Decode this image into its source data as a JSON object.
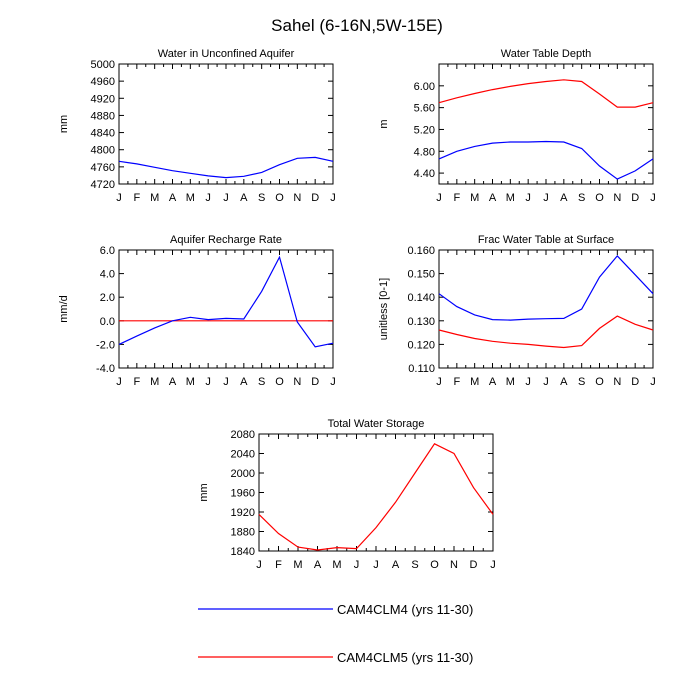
{
  "title": "Sahel (6-16N,5W-15E)",
  "colors": {
    "CAM4CLM4": "#0000ff",
    "CAM4CLM5": "#ff0000",
    "zero_line": "#ff0000"
  },
  "legend": {
    "placement": "bottom-center",
    "entries": [
      {
        "name": "CAM4CLM4 (yrs 11-30)",
        "color": "#0000ff"
      },
      {
        "name": "CAM4CLM5 (yrs 11-30)",
        "color": "#ff0000"
      }
    ]
  },
  "chart_data": [
    {
      "type": "line",
      "title": "Water in Unconfined Aquifer",
      "ylabel": "mm",
      "categories": [
        "J",
        "F",
        "M",
        "A",
        "M",
        "J",
        "J",
        "A",
        "S",
        "O",
        "N",
        "D",
        "J"
      ],
      "ylim": [
        4720,
        5000
      ],
      "yticks": [
        4720,
        4760,
        4800,
        4840,
        4880,
        4920,
        4960,
        5000
      ],
      "ytick_labels": [
        "4720",
        "4760",
        "4800",
        "4840",
        "4880",
        "4920",
        "4960",
        "5000"
      ],
      "grid": false,
      "series": [
        {
          "name": "CAM4CLM4 (yrs 11-30)",
          "color": "#0000ff",
          "values": [
            4773,
            4767,
            4759,
            4751,
            4745,
            4739,
            4735,
            4738,
            4747,
            4765,
            4780,
            4782,
            4773
          ]
        }
      ]
    },
    {
      "type": "line",
      "title": "Water Table Depth",
      "ylabel": "m",
      "categories": [
        "J",
        "F",
        "M",
        "A",
        "M",
        "J",
        "J",
        "A",
        "S",
        "O",
        "N",
        "D",
        "J"
      ],
      "ylim": [
        4.2,
        6.4
      ],
      "yticks": [
        4.4,
        4.8,
        5.2,
        5.6,
        6.0
      ],
      "ytick_labels": [
        "4.40",
        "4.80",
        "5.20",
        "5.60",
        "6.00"
      ],
      "grid": false,
      "series": [
        {
          "name": "CAM4CLM4 (yrs 11-30)",
          "color": "#0000ff",
          "values": [
            4.66,
            4.8,
            4.89,
            4.95,
            4.97,
            4.97,
            4.98,
            4.97,
            4.85,
            4.53,
            4.29,
            4.44,
            4.66
          ]
        },
        {
          "name": "CAM4CLM5 (yrs 11-30)",
          "color": "#ff0000",
          "values": [
            5.69,
            5.78,
            5.86,
            5.93,
            5.99,
            6.04,
            6.08,
            6.11,
            6.08,
            5.85,
            5.61,
            5.61,
            5.69
          ]
        }
      ]
    },
    {
      "type": "line",
      "title": "Aquifer Recharge Rate",
      "ylabel": "mm/d",
      "categories": [
        "J",
        "F",
        "M",
        "A",
        "M",
        "J",
        "J",
        "A",
        "S",
        "O",
        "N",
        "D",
        "J"
      ],
      "ylim": [
        -4.0,
        6.0
      ],
      "yticks": [
        -4.0,
        -2.0,
        0.0,
        2.0,
        4.0,
        6.0
      ],
      "ytick_labels": [
        "-4.0",
        "-2.0",
        "0.0",
        "2.0",
        "4.0",
        "6.0"
      ],
      "grid": false,
      "zero_line": true,
      "series": [
        {
          "name": "CAM4CLM4 (yrs 11-30)",
          "color": "#0000ff",
          "values": [
            -2.0,
            -1.3,
            -0.6,
            0.0,
            0.3,
            0.1,
            0.2,
            0.15,
            2.5,
            5.4,
            -0.1,
            -2.2,
            -1.9
          ]
        }
      ]
    },
    {
      "type": "line",
      "title": "Frac Water Table at Surface",
      "ylabel": "unitless [0-1]",
      "categories": [
        "J",
        "F",
        "M",
        "A",
        "M",
        "J",
        "J",
        "A",
        "S",
        "O",
        "N",
        "D",
        "J"
      ],
      "ylim": [
        0.11,
        0.16
      ],
      "yticks": [
        0.11,
        0.12,
        0.13,
        0.14,
        0.15,
        0.16
      ],
      "ytick_labels": [
        "0.110",
        "0.120",
        "0.130",
        "0.140",
        "0.150",
        "0.160"
      ],
      "grid": false,
      "series": [
        {
          "name": "CAM4CLM4 (yrs 11-30)",
          "color": "#0000ff",
          "values": [
            0.1415,
            0.136,
            0.1325,
            0.1305,
            0.1303,
            0.1307,
            0.1309,
            0.131,
            0.135,
            0.1485,
            0.1575,
            0.1495,
            0.1415
          ]
        },
        {
          "name": "CAM4CLM5 (yrs 11-30)",
          "color": "#ff0000",
          "values": [
            0.1261,
            0.1242,
            0.1225,
            0.1213,
            0.1205,
            0.12,
            0.1193,
            0.1187,
            0.1195,
            0.1268,
            0.132,
            0.1285,
            0.1261
          ]
        }
      ]
    },
    {
      "type": "line",
      "title": "Total Water Storage",
      "ylabel": "mm",
      "categories": [
        "J",
        "F",
        "M",
        "A",
        "M",
        "J",
        "J",
        "A",
        "S",
        "O",
        "N",
        "D",
        "J"
      ],
      "ylim": [
        1840,
        2080
      ],
      "yticks": [
        1840,
        1880,
        1920,
        1960,
        2000,
        2040,
        2080
      ],
      "ytick_labels": [
        "1840",
        "1880",
        "1920",
        "1960",
        "2000",
        "2040",
        "2080"
      ],
      "grid": false,
      "series": [
        {
          "name": "CAM4CLM5 (yrs 11-30)",
          "color": "#ff0000",
          "values": [
            1915,
            1876,
            1848,
            1842,
            1847,
            1845,
            1888,
            1940,
            2000,
            2060,
            2040,
            1970,
            1915
          ]
        }
      ]
    }
  ]
}
